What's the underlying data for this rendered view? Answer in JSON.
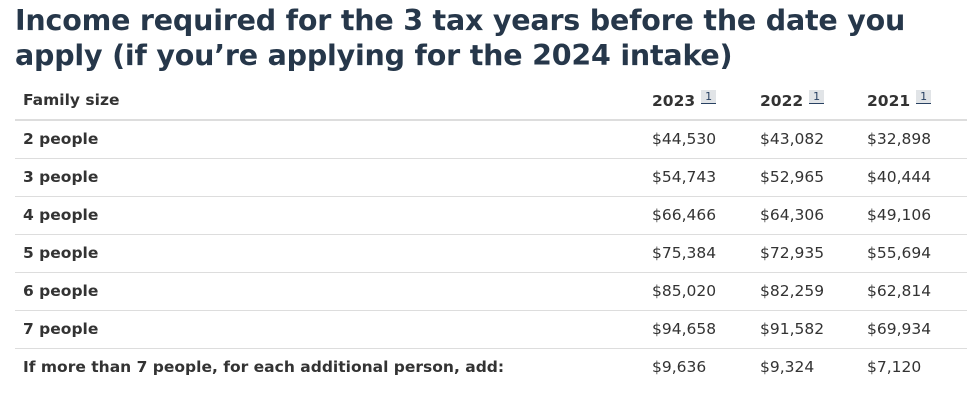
{
  "heading": "Income required for the 3 tax years before the date you apply (if you’re applying for the 2024 intake)",
  "table": {
    "header": {
      "family_size": "Family size",
      "years": [
        {
          "label": "2023",
          "footnote": "1"
        },
        {
          "label": "2022",
          "footnote": "1"
        },
        {
          "label": "2021",
          "footnote": "1"
        }
      ]
    },
    "rows": [
      {
        "label": "2 people",
        "values": [
          "$44,530",
          "$43,082",
          "$32,898"
        ]
      },
      {
        "label": "3 people",
        "values": [
          "$54,743",
          "$52,965",
          "$40,444"
        ]
      },
      {
        "label": "4 people",
        "values": [
          "$66,466",
          "$64,306",
          "$49,106"
        ]
      },
      {
        "label": "5 people",
        "values": [
          "$75,384",
          "$72,935",
          "$55,694"
        ]
      },
      {
        "label": "6 people",
        "values": [
          "$85,020",
          "$82,259",
          "$62,814"
        ]
      },
      {
        "label": "7 people",
        "values": [
          "$94,658",
          "$91,582",
          "$69,934"
        ]
      },
      {
        "label": "If more than 7 people, for each additional person, add:",
        "values": [
          "$9,636",
          "$9,324",
          "$7,120"
        ]
      }
    ]
  },
  "colors": {
    "heading": "#26374a",
    "text": "#333333",
    "row_border": "#dddddd",
    "footnote_link": "#284162",
    "footnote_bg": "#e1e4e7"
  }
}
